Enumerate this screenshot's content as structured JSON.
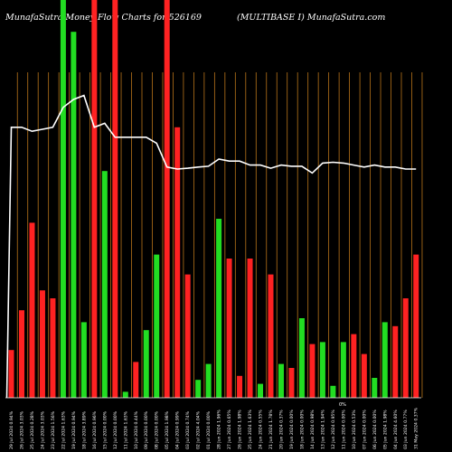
{
  "header": {
    "left": "MunafaSutra  Money Flow  Charts for 526169",
    "right": "(MULTIBASE I) MunafaSutra.com"
  },
  "annotation": "0%",
  "chart_data": {
    "type": "bar",
    "ylim": [
      0,
      100
    ],
    "colors": {
      "up": "#22dd22",
      "down": "#ff2222",
      "grid": "#b8741a",
      "line": "#ffffff",
      "background": "#000000"
    },
    "categories": [
      "29 Jul 2024 0.94%",
      "26 Jul 2024 3.03%",
      "25 Jul 2024 0.28%",
      "24 Jul 2024 3.03%",
      "23 Jul 2024 1.56%",
      "22 Jul 2024 1.63%",
      "19 Jul 2024 0.94%",
      "18 Jul 2024 3.89%",
      "16 Jul 2024 0.96%",
      "15 Jul 2024 0.00%",
      "12 Jul 2024 0.00%",
      "11 Jul 2024 1.63%",
      "10 Jul 2024 0.44%",
      "09 Jul 2024 0.00%",
      "08 Jul 2024 0.00%",
      "05 Jul 2024 1.98%",
      "04 Jul 2024 0.99%",
      "03 Jul 2024 0.74%",
      "02 Jul 2024 4.04%",
      "01 Jul 2024 0.00%",
      "28 Jun 2024 1.96%",
      "27 Jun 2024 0.65%",
      "26 Jun 2024 1.98%",
      "25 Jun 2024 1.63%",
      "24 Jun 2024 0.55%",
      "21 Jun 2024 1.78%",
      "20 Jun 2024 0.37%",
      "19 Jun 2024 0.00%",
      "18 Jun 2024 0.00%",
      "14 Jun 2024 0.98%",
      "13 Jun 2024 1.94%",
      "12 Jun 2024 0.95%",
      "11 Jun 2024 0.00%",
      "10 Jun 2024 0.53%",
      "07 Jun 2024 0.00%",
      "06 Jun 2024 0.00%",
      "05 Jun 2024 1.98%",
      "04 Jun 2024 4.60%",
      "03 Jun 2024 0.77%",
      "31 May 2024 0.37%"
    ],
    "series": [
      {
        "directions": [
          "down",
          "down",
          "down",
          "down",
          "down",
          "up",
          "up",
          "up",
          "down",
          "up",
          "down",
          "up",
          "down",
          "up",
          "up",
          "down",
          "down",
          "down",
          "up",
          "up",
          "up",
          "down",
          "down",
          "down",
          "up",
          "down",
          "up",
          "down",
          "up",
          "down",
          "up",
          "up",
          "up",
          "down",
          "down",
          "up",
          "up",
          "down",
          "down",
          "down"
        ],
        "values": [
          12,
          22,
          44,
          27,
          25,
          100,
          92,
          19,
          100,
          57,
          100,
          1.5,
          9,
          17,
          36,
          100,
          68,
          31,
          4.5,
          8.5,
          45,
          35,
          5.5,
          35,
          3.5,
          31,
          8.5,
          7.5,
          20,
          13.5,
          14,
          3,
          14,
          16,
          11,
          5,
          19,
          18,
          25,
          36
        ]
      },
      {
        "name": "",
        "values": [
          68,
          68,
          67,
          67.5,
          68,
          73,
          75,
          76,
          68,
          69,
          65.5,
          65.5,
          65.5,
          65.5,
          64,
          58,
          57.5,
          57.7,
          58,
          58.2,
          60,
          59.5,
          59.5,
          58.5,
          58.5,
          57.7,
          58.5,
          58.2,
          58.2,
          56.5,
          59,
          59.2,
          59,
          58.5,
          58,
          58.5,
          58,
          58,
          57.5,
          57.5
        ]
      }
    ]
  }
}
